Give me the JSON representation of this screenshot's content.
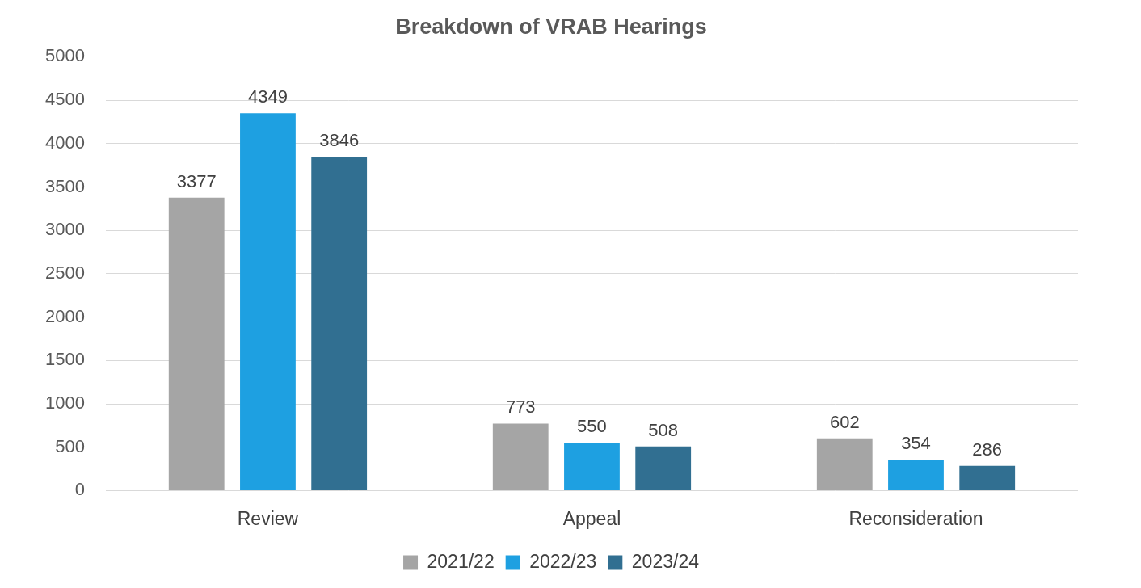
{
  "chart_data": {
    "type": "bar",
    "title": "Breakdown of VRAB Hearings",
    "categories": [
      "Review",
      "Appeal",
      "Reconsideration"
    ],
    "series": [
      {
        "name": "2021/22",
        "color": "#a5a5a5",
        "values": [
          3377,
          773,
          602
        ]
      },
      {
        "name": "2022/23",
        "color": "#1ea0e1",
        "values": [
          4349,
          550,
          354
        ]
      },
      {
        "name": "2023/24",
        "color": "#316f91",
        "values": [
          3846,
          508,
          286
        ]
      }
    ],
    "ylim": [
      0,
      5000
    ],
    "yticks": [
      0,
      500,
      1000,
      1500,
      2000,
      2500,
      3000,
      3500,
      4000,
      4500,
      5000
    ],
    "grid": true,
    "legend": "bottom",
    "data_labels": true
  }
}
